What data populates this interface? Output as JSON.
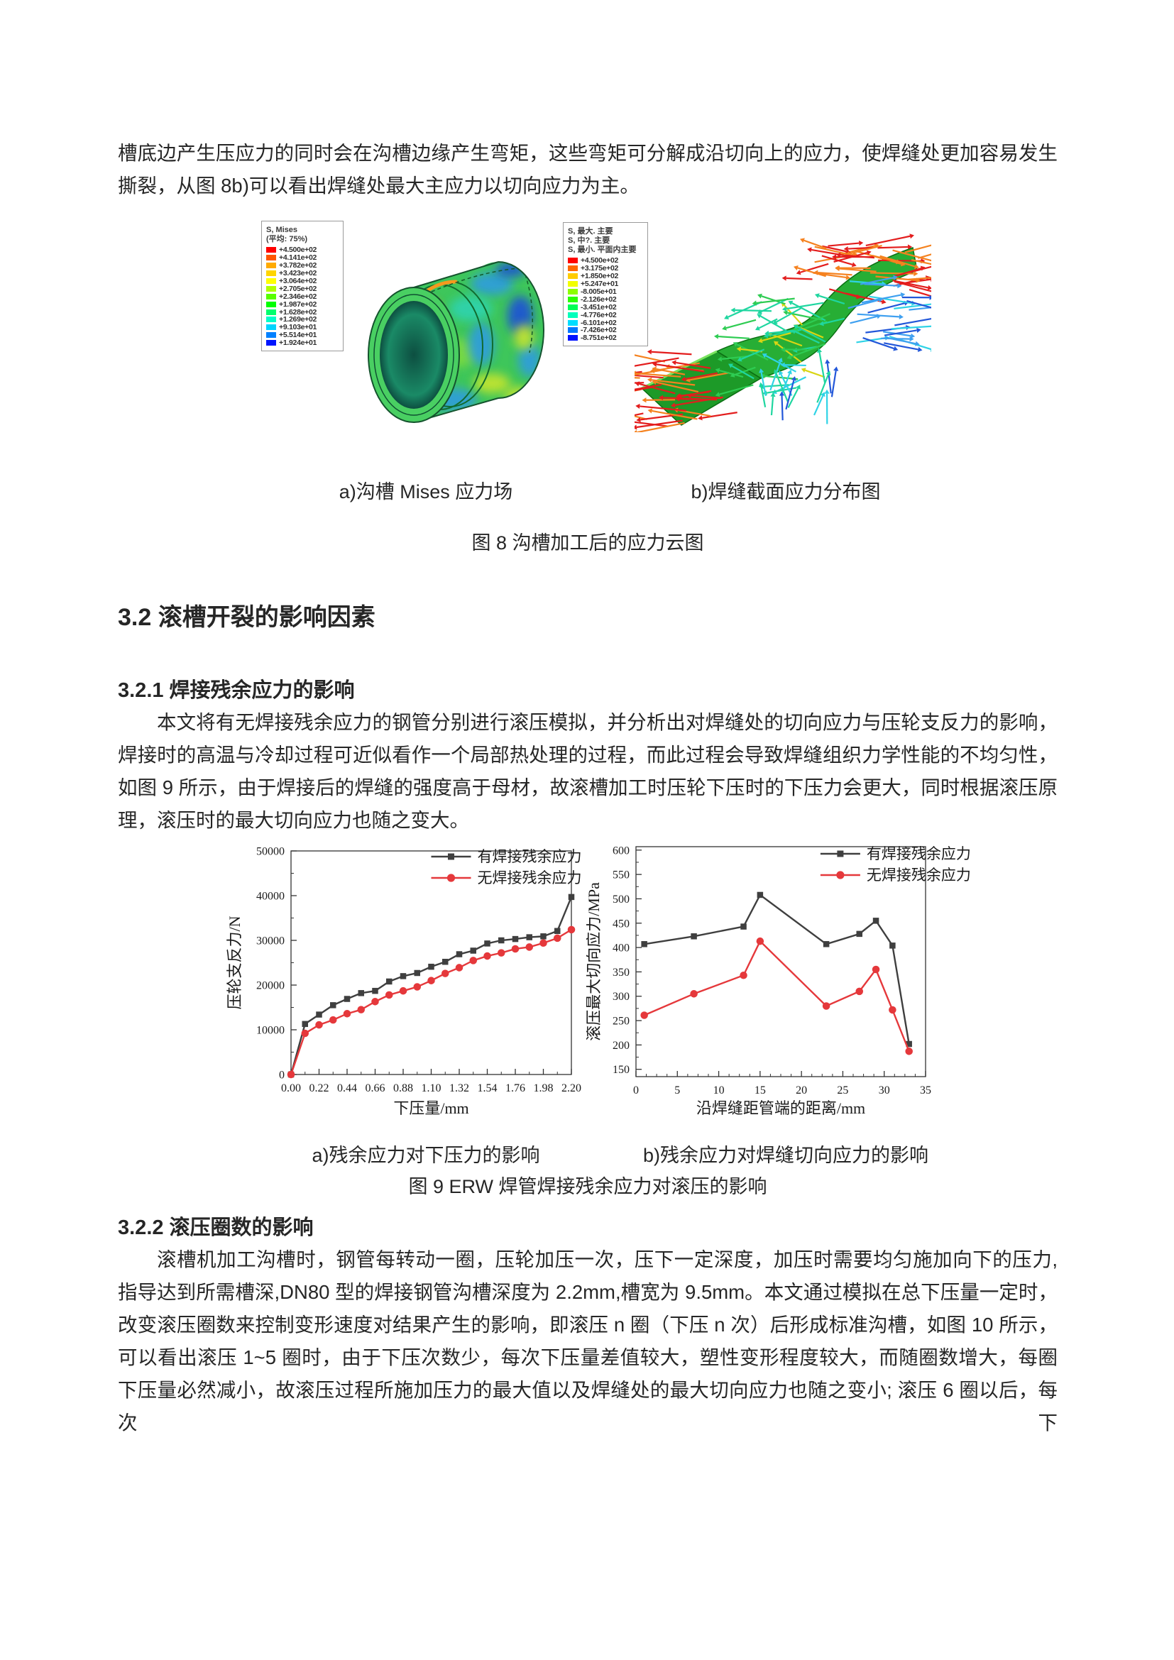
{
  "page": {
    "paragraph_top": "槽底边产生压应力的同时会在沟槽边缘产生弯矩，这些弯矩可分解成沿切向上的应力，使焊缝处更加容易发生撕裂，从图 8b)可以看出焊缝处最大主应力以切向应力为主。"
  },
  "figure8": {
    "legend_left": {
      "title": "S, Mises",
      "subtitle": "(平均: 75%)",
      "values": [
        "+4.500e+02",
        "+4.141e+02",
        "+3.782e+02",
        "+3.423e+02",
        "+3.064e+02",
        "+2.705e+02",
        "+2.346e+02",
        "+1.987e+02",
        "+1.628e+02",
        "+1.269e+02",
        "+9.103e+01",
        "+5.514e+01",
        "+1.924e+01"
      ],
      "colors": [
        "#ff0000",
        "#ff5500",
        "#ffaa00",
        "#ffd500",
        "#ffff00",
        "#b0ff00",
        "#58ff00",
        "#00ff00",
        "#00ff6d",
        "#00ffc8",
        "#00d5ff",
        "#0080ff",
        "#0015ff"
      ]
    },
    "legend_right": {
      "titles": [
        "S, 最大. 主要",
        "S, 中?. 主要",
        "S, 最小. 平面内主要"
      ],
      "values": [
        "+4.500e+02",
        "+3.175e+02",
        "+1.850e+02",
        "+5.247e+01",
        "-8.005e+01",
        "-2.126e+02",
        "-3.451e+02",
        "-4.776e+02",
        "-6.101e+02",
        "-7.426e+02",
        "-8.751e+02"
      ],
      "colors": [
        "#ff0000",
        "#ff6600",
        "#ffcc00",
        "#f2ff00",
        "#8cff00",
        "#2bff00",
        "#00ff55",
        "#00ffbb",
        "#00ddff",
        "#0077ff",
        "#0011ff"
      ]
    },
    "caption_a": "a)沟槽 Mises 应力场",
    "caption_b": "b)焊缝截面应力分布图",
    "caption_main": "图 8 沟槽加工后的应力云图"
  },
  "section_32": {
    "heading": "3.2 滚槽开裂的影响因素"
  },
  "section_321": {
    "heading": "3.2.1 焊接残余应力的影响",
    "paragraph": "本文将有无焊接残余应力的钢管分别进行滚压模拟，并分析出对焊缝处的切向应力与压轮支反力的影响，焊接时的高温与冷却过程可近似看作一个局部热处理的过程，而此过程会导致焊缝组织力学性能的不均匀性，如图 9 所示，由于焊接后的焊缝的强度高于母材，故滚槽加工时压轮下压时的下压力会更大，同时根据滚压原理，滚压时的最大切向应力也随之变大。"
  },
  "figure9": {
    "caption_a": "a)残余应力对下压力的影响",
    "caption_b": "b)残余应力对焊缝切向应力的影响",
    "caption_main": "图 9 ERW 焊管焊接残余应力对滚压的影响"
  },
  "section_322": {
    "heading": "3.2.2 滚压圈数的影响",
    "paragraph": "滚槽机加工沟槽时，钢管每转动一圈，压轮加压一次，压下一定深度，加压时需要均匀施加向下的压力,指导达到所需槽深,DN80 型的焊接钢管沟槽深度为 2.2mm,槽宽为 9.5mm。本文通过模拟在总下压量一定时，改变滚压圈数来控制变形速度对结果产生的影响，即滚压 n 圈（下压 n 次）后形成标准沟槽，如图 10 所示，可以看出滚压 1~5 圈时，由于下压次数少，每次下压量差值较大，塑性变形程度较大，而随圈数增大，每圈下压量必然减小，故滚压过程所施加压力的最大值以及焊缝处的最大切向应力也随之变小; 滚压 6 圈以后，每次下"
  },
  "chart_data": [
    {
      "type": "line",
      "title": "",
      "xlabel": "下压量/mm",
      "ylabel": "压轮支反力/N",
      "xlim": [
        0,
        2.2
      ],
      "ylim": [
        0,
        50000
      ],
      "xticks": [
        0.0,
        0.22,
        0.44,
        0.66,
        0.88,
        1.1,
        1.32,
        1.54,
        1.76,
        1.98,
        2.2
      ],
      "xticklabels": [
        "0.00",
        "0.22",
        "0.44",
        "0.66",
        "0.88",
        "1.10",
        "1.32",
        "1.54",
        "1.76",
        "1.98",
        "2.20"
      ],
      "yticks": [
        0,
        10000,
        20000,
        30000,
        40000,
        50000
      ],
      "yticklabels": [
        "0",
        "10000",
        "20000",
        "30000",
        "40000",
        "50000"
      ],
      "xminor_div": 2,
      "yminor_div": 2,
      "grid": false,
      "legend_position": "top-right",
      "x": [
        0.0,
        0.11,
        0.22,
        0.33,
        0.44,
        0.55,
        0.66,
        0.77,
        0.88,
        0.99,
        1.1,
        1.21,
        1.32,
        1.43,
        1.54,
        1.65,
        1.76,
        1.87,
        1.98,
        2.09,
        2.2
      ],
      "series": [
        {
          "name": "有焊接残余应力",
          "color": "#3f3f3f",
          "marker": "square",
          "values": [
            0,
            11300,
            13400,
            15500,
            16900,
            18200,
            18700,
            20800,
            22000,
            22700,
            24100,
            25200,
            26900,
            27700,
            29300,
            30000,
            30300,
            30700,
            30900,
            32100,
            39700
          ]
        },
        {
          "name": "无焊接残余应力",
          "color": "#e5383b",
          "marker": "circle",
          "values": [
            0,
            9200,
            11100,
            12200,
            13600,
            14500,
            16300,
            17800,
            18700,
            19600,
            21000,
            22600,
            23900,
            25500,
            26500,
            27200,
            28100,
            28500,
            29400,
            30500,
            32400
          ]
        }
      ]
    },
    {
      "type": "line",
      "title": "",
      "xlabel": "沿焊缝距管端的距离/mm",
      "ylabel": "滚压最大切向应力/MPa",
      "xlim": [
        0,
        35
      ],
      "ylim": [
        135,
        607
      ],
      "xticks": [
        0,
        5,
        10,
        15,
        20,
        25,
        30,
        35
      ],
      "xticklabels": [
        "0",
        "5",
        "10",
        "15",
        "20",
        "25",
        "30",
        "35"
      ],
      "yticks": [
        150,
        200,
        250,
        300,
        350,
        400,
        450,
        500,
        550,
        600
      ],
      "yticklabels": [
        "150",
        "200",
        "250",
        "300",
        "350",
        "400",
        "450",
        "500",
        "550",
        "600"
      ],
      "xminor_div": 4,
      "yminor_div": 2,
      "grid": false,
      "legend_position": "top-right",
      "x": [
        1,
        7,
        13,
        15,
        23,
        27,
        29,
        31,
        33
      ],
      "series": [
        {
          "name": "有焊接残余应力",
          "color": "#3f3f3f",
          "marker": "square",
          "values": [
            407,
            423,
            443,
            508,
            407,
            428,
            455,
            404,
            202
          ]
        },
        {
          "name": "无焊接残余应力",
          "color": "#e5383b",
          "marker": "circle",
          "values": [
            261,
            305,
            343,
            413,
            280,
            310,
            355,
            272,
            187
          ]
        }
      ]
    }
  ],
  "colors": {
    "text": "#262626",
    "series_dark": "#3f3f3f",
    "series_red": "#e5383b",
    "fea_base": "#3ec65b",
    "fea_rim": "#49cf62",
    "fea_hole_dark": "#0d4f41",
    "fea_hole_mid": "#1a8a66",
    "fea_band_dark": "#1d9a28",
    "fea_band_mid": "#27ae35",
    "fea_red": "#e31d1d",
    "fea_orange": "#f5821f",
    "fea_yellow": "#d9d514",
    "fea_green": "#2ecc52",
    "fea_teal": "#1fd6a0",
    "fea_cyan": "#2fd3e6",
    "fea_lblue": "#3fa0f0",
    "fea_blue": "#2257d9",
    "blob_blue1": "#1e50d8",
    "blob_blue2": "#2e9be0",
    "blob_teal": "#2ed3b0",
    "blob_yellow": "#c8e52e",
    "blob_orange": "#f59a1e",
    "blob_red": "#e8491f",
    "blob_lightgreen": "#7fdc3f"
  }
}
